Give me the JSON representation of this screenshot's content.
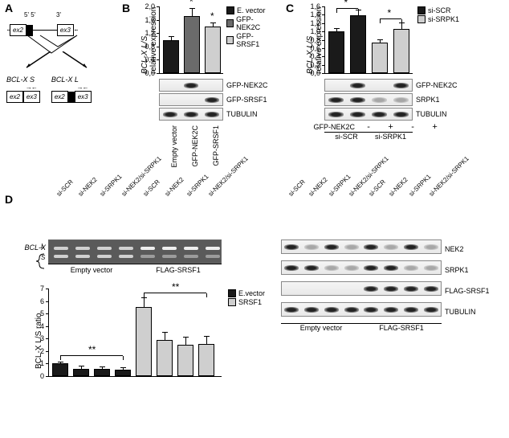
{
  "colors": {
    "black": "#1a1a1a",
    "darkgray": "#6b6b6b",
    "lightgray": "#cfcfcf",
    "white": "#ffffff"
  },
  "panelA": {
    "label": "A",
    "top_labels": {
      "left": "5' 5'",
      "right": "3'"
    },
    "exon_left": "ex2",
    "exon_right": "ex3",
    "branch_left": {
      "title": "BCL-X S",
      "ex_a": "ex2",
      "ex_b": "ex3"
    },
    "branch_right": {
      "title": "BCL-X L",
      "ex_a": "ex2",
      "ex_b": "ex3"
    }
  },
  "panelB": {
    "label": "B",
    "ylabel": "BCL-X L/S\nrelative expression",
    "ymax": 2.0,
    "ytick_step": 0.4,
    "bars": [
      {
        "label": "Empty vector",
        "value": 1.0,
        "err": 0.08,
        "fillKey": "black",
        "star": ""
      },
      {
        "label": "GFP-NEK2C",
        "value": 1.7,
        "err": 0.22,
        "fillKey": "darkgray",
        "star": "*"
      },
      {
        "label": "GFP-SRSF1",
        "value": 1.4,
        "err": 0.1,
        "fillKey": "lightgray",
        "star": "*"
      }
    ],
    "legend": [
      {
        "text": "E. vector",
        "fillKey": "black"
      },
      {
        "text": "GFP-NEK2C",
        "fillKey": "darkgray"
      },
      {
        "text": "GFP-SRSF1",
        "fillKey": "lightgray"
      }
    ],
    "blots": [
      {
        "label": "GFP-NEK2C",
        "lanes": [
          "none",
          "band",
          "none"
        ]
      },
      {
        "label": "GFP-SRSF1",
        "lanes": [
          "none",
          "none",
          "band"
        ]
      },
      {
        "label": "TUBULIN",
        "lanes": [
          "band",
          "band",
          "band"
        ]
      }
    ],
    "xlabels": [
      "Empty vector",
      "GFP-NEK2C",
      "GFP-SRSF1"
    ]
  },
  "panelC": {
    "label": "C",
    "ylabel": "BCL-X L/S\nrelative expression",
    "ymax": 1.6,
    "ytick_step": 0.2,
    "bars": [
      {
        "value": 1.0,
        "err": 0.07,
        "fillKey": "black"
      },
      {
        "value": 1.38,
        "err": 0.12,
        "fillKey": "black"
      },
      {
        "value": 0.73,
        "err": 0.07,
        "fillKey": "lightgray"
      },
      {
        "value": 1.07,
        "err": 0.12,
        "fillKey": "lightgray"
      }
    ],
    "brackets": [
      {
        "from": 0,
        "to": 1,
        "y": 1.55,
        "label": "*"
      },
      {
        "from": 2,
        "to": 3,
        "y": 1.3,
        "label": "*"
      }
    ],
    "legend": [
      {
        "text": "si-SCR",
        "fillKey": "black"
      },
      {
        "text": "si-SRPK1",
        "fillKey": "lightgray"
      }
    ],
    "blots": [
      {
        "label": "GFP-NEK2C",
        "lanes": [
          "none",
          "band",
          "none",
          "band"
        ]
      },
      {
        "label": "SRPK1",
        "lanes": [
          "band",
          "band",
          "faint",
          "faint"
        ]
      },
      {
        "label": "TUBULIN",
        "lanes": [
          "band",
          "band",
          "band",
          "band"
        ]
      }
    ],
    "row_label": "GFP-NEK2C",
    "row_signs": [
      "-",
      "+",
      "-",
      "+"
    ],
    "group_labels": [
      "si-SCR",
      "si-SRPK1"
    ]
  },
  "panelD": {
    "label": "D",
    "lane_labels": [
      "si-SCR",
      "si-NEK2",
      "si-SRPK1",
      "si-NEK2/si-SRPK1",
      "si-SCR",
      "si-NEK2",
      "si-SRPK1",
      "si-NEK2/si-SRPK1"
    ],
    "gel_side_label": "BCL-X",
    "gel_band_labels": {
      "top": "L",
      "bottom": "S"
    },
    "gel_groups": [
      "Empty vector",
      "FLAG-SRSF1"
    ],
    "chart": {
      "ylabel": "BCL-X L/S ratio",
      "ymax": 7,
      "ytick_step": 1,
      "bars": [
        {
          "value": 1.0,
          "err": 0.1,
          "fillKey": "black"
        },
        {
          "value": 0.55,
          "err": 0.2,
          "fillKey": "black"
        },
        {
          "value": 0.55,
          "err": 0.18,
          "fillKey": "black"
        },
        {
          "value": 0.52,
          "err": 0.13,
          "fillKey": "black"
        },
        {
          "value": 5.5,
          "err": 0.7,
          "fillKey": "lightgray"
        },
        {
          "value": 2.9,
          "err": 0.55,
          "fillKey": "lightgray"
        },
        {
          "value": 2.5,
          "err": 0.6,
          "fillKey": "lightgray"
        },
        {
          "value": 2.6,
          "err": 0.55,
          "fillKey": "lightgray"
        }
      ],
      "brackets": [
        {
          "from": 0,
          "to": 3,
          "y": 1.6,
          "label": "**"
        },
        {
          "from": 4,
          "to": 7,
          "y": 6.6,
          "label": "**"
        }
      ],
      "legend": [
        {
          "text": "E.vector",
          "fillKey": "black"
        },
        {
          "text": "SRSF1",
          "fillKey": "lightgray"
        }
      ]
    },
    "blots": [
      {
        "label": "NEK2",
        "lanes": [
          "band",
          "faint",
          "band",
          "faint",
          "band",
          "faint",
          "band",
          "faint"
        ]
      },
      {
        "label": "SRPK1",
        "lanes": [
          "band",
          "band",
          "faint",
          "faint",
          "band",
          "band",
          "faint",
          "faint"
        ]
      },
      {
        "label": "FLAG-SRSF1",
        "lanes": [
          "none",
          "none",
          "none",
          "none",
          "band",
          "band",
          "band",
          "band"
        ]
      },
      {
        "label": "TUBULIN",
        "lanes": [
          "band",
          "band",
          "band",
          "band",
          "band",
          "band",
          "band",
          "band"
        ]
      }
    ],
    "blot_groups": [
      "Empty vector",
      "FLAG-SRSF1"
    ]
  }
}
